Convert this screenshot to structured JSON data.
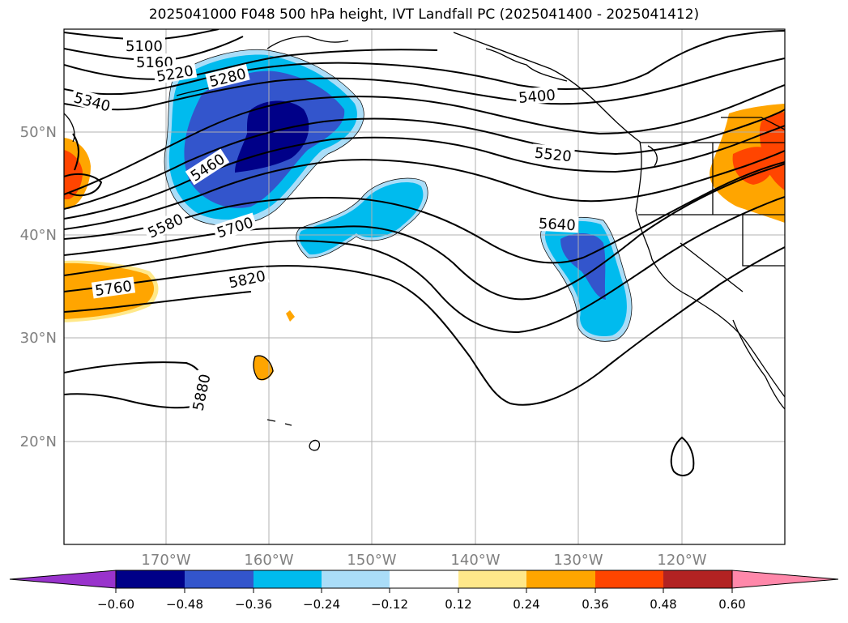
{
  "map": {
    "title": "2025041000 F048 500 hPa height, IVT Landfall PC (2025041400 - 2025041412)",
    "lat_labels": [
      "50°N",
      "40°N",
      "30°N",
      "20°N"
    ],
    "lon_labels": [
      "170°W",
      "160°W",
      "150°W",
      "140°W",
      "130°W",
      "120°W"
    ],
    "contour_labels": [
      "5100",
      "5160",
      "5220",
      "5280",
      "5340",
      "5400",
      "5460",
      "5520",
      "5580",
      "5640",
      "5700",
      "5760",
      "5820",
      "5880"
    ],
    "colors": {
      "land_line": "#000000",
      "grid": "#b0b0b0",
      "tick_label": "#808080"
    }
  },
  "colorbar": {
    "ticks": [
      "−0.60",
      "−0.48",
      "−0.36",
      "−0.24",
      "−0.12",
      "0.12",
      "0.24",
      "0.36",
      "0.48",
      "0.60"
    ],
    "colors": [
      "#9933cc",
      "#000088",
      "#3355cc",
      "#00bbee",
      "#aaddf8",
      "#ffffff",
      "#ffe88a",
      "#ffa500",
      "#ff4500",
      "#b22222",
      "#ff88aa"
    ]
  }
}
